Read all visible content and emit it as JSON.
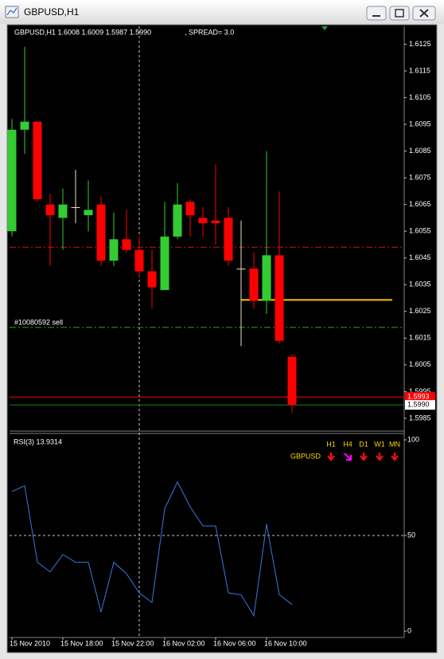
{
  "window": {
    "title": "GBPUSD,H1"
  },
  "chart_data": [
    {
      "type": "candlestick",
      "info": "GBPUSD,H1  1.6008 1.6009 1.5987 1.5990",
      "spread": ", SPREAD= 3.0",
      "categories": [
        "15 Nov 2010",
        null,
        null,
        null,
        "15 Nov 18:00",
        null,
        null,
        null,
        "15 Nov 22:00",
        null,
        null,
        null,
        "16 Nov 02:00",
        null,
        null,
        null,
        "16 Nov 06:00",
        null,
        null,
        null,
        "16 Nov 10:00",
        null,
        null
      ],
      "open": [
        1.6055,
        1.6093,
        1.6096,
        1.6065,
        1.606,
        1.6064,
        1.6061,
        1.6065,
        1.6044,
        1.6052,
        1.6048,
        1.604,
        1.6033,
        1.6053,
        1.6066,
        1.606,
        1.6059,
        1.606,
        1.6041,
        1.6041,
        1.6029,
        1.6046,
        1.6008
      ],
      "high": [
        1.6097,
        1.6124,
        1.6096,
        1.6069,
        1.6071,
        1.6078,
        1.6074,
        1.6068,
        1.6062,
        1.6063,
        1.6053,
        1.6048,
        1.6066,
        1.6073,
        1.6067,
        1.6064,
        1.608,
        1.6064,
        1.6059,
        1.6047,
        1.6085,
        1.607,
        1.6009
      ],
      "low": [
        1.6053,
        1.6084,
        1.6066,
        1.6042,
        1.6048,
        1.6058,
        1.6055,
        1.6042,
        1.6042,
        1.6047,
        1.6038,
        1.6026,
        1.6033,
        1.6052,
        1.6053,
        1.6053,
        1.605,
        1.6042,
        1.6012,
        1.6026,
        1.6024,
        1.6013,
        1.5987
      ],
      "close": [
        1.6093,
        1.6096,
        1.6067,
        1.6061,
        1.6065,
        1.6064,
        1.6063,
        1.6044,
        1.6052,
        1.6048,
        1.604,
        1.6034,
        1.6053,
        1.6065,
        1.6061,
        1.6058,
        1.6058,
        1.6044,
        1.6041,
        1.6029,
        1.6046,
        1.6014,
        1.599
      ],
      "up_color": "#33cc33",
      "down_color": "#ff0000",
      "doji_color": "#e8e0c8",
      "ylim": [
        1.59805,
        1.61317
      ],
      "yticks": [
        1.6125,
        1.6115,
        1.6105,
        1.6095,
        1.6085,
        1.6075,
        1.6065,
        1.6055,
        1.6045,
        1.6035,
        1.6025,
        1.6015,
        1.6005,
        1.5995,
        1.5985
      ],
      "crosshair_index": 10,
      "levels": [
        {
          "value": 1.6049,
          "color": "#d01010",
          "style": "dashdot"
        },
        {
          "value": 1.6019,
          "color": "#22aa22",
          "style": "dashdot",
          "label": "#10080592 sell"
        },
        {
          "value": 1.60293,
          "color": "#ffc000",
          "style": "solid",
          "from_index": 18
        },
        {
          "value": 1.5993,
          "color": "#ff0000",
          "style": "solid",
          "value_label": "1.5993"
        },
        {
          "value": 1.599,
          "color": "#1f7a1f",
          "style": "solid",
          "value_label": "1.5990"
        }
      ]
    },
    {
      "type": "line",
      "title": "RSI(3) 13.9314",
      "values": [
        73,
        76,
        36,
        31,
        40,
        36,
        36,
        10,
        36,
        30,
        20,
        15,
        64,
        78,
        65,
        55,
        55,
        20,
        19,
        8,
        56,
        19,
        13.9314
      ],
      "color": "#3a78e0",
      "ylim": [
        0,
        100
      ],
      "yticks": [
        0,
        50,
        100
      ],
      "levels": [
        50
      ],
      "mtf": {
        "symbol": "GBPUSD",
        "timeframes": [
          "H1",
          "H4",
          "D1",
          "W1",
          "MN"
        ],
        "directions": [
          "down",
          "down-right",
          "down",
          "down",
          "down"
        ]
      }
    }
  ]
}
